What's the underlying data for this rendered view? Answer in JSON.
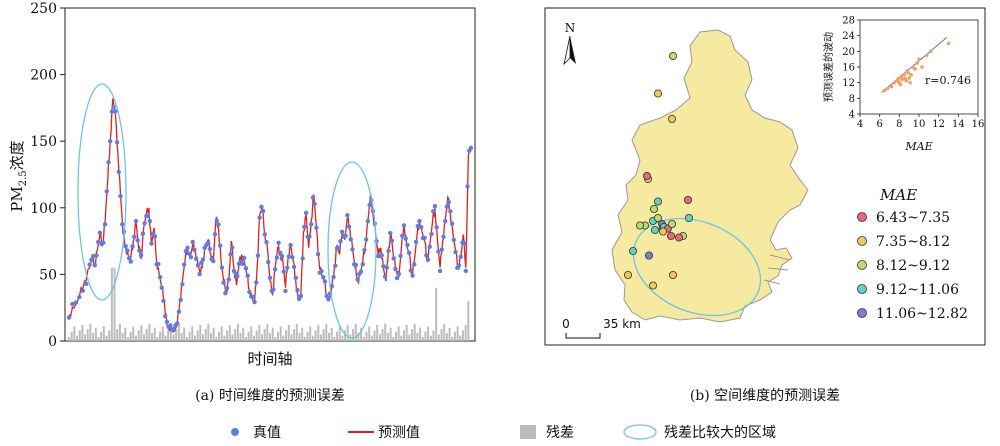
{
  "panel_a": {
    "caption": "(a) 时间维度的预测误差",
    "chart_data": {
      "type": "line",
      "title": "",
      "ylabel_main": "PM",
      "ylabel_sub": "2.5",
      "ylabel_rest": "浓度",
      "xlabel": "时间轴",
      "ylim": [
        0,
        250
      ],
      "yticks": [
        0,
        50,
        100,
        150,
        200,
        250
      ],
      "anchors": [
        [
          0,
          20
        ],
        [
          2,
          25
        ],
        [
          4,
          33
        ],
        [
          6,
          45
        ],
        [
          8,
          55
        ],
        [
          9,
          62
        ],
        [
          10,
          58
        ],
        [
          11,
          68
        ],
        [
          12,
          80
        ],
        [
          13,
          72
        ],
        [
          14,
          90
        ],
        [
          15,
          120
        ],
        [
          16,
          150
        ],
        [
          17,
          182
        ],
        [
          18,
          170
        ],
        [
          19,
          140
        ],
        [
          20,
          110
        ],
        [
          21,
          80
        ],
        [
          22,
          70
        ],
        [
          23,
          64
        ],
        [
          24,
          62
        ],
        [
          25,
          75
        ],
        [
          26,
          90
        ],
        [
          27,
          70
        ],
        [
          28,
          62
        ],
        [
          29,
          85
        ],
        [
          30,
          95
        ],
        [
          31,
          100
        ],
        [
          32,
          72
        ],
        [
          33,
          85
        ],
        [
          34,
          60
        ],
        [
          35,
          50
        ],
        [
          36,
          40
        ],
        [
          37,
          30
        ],
        [
          38,
          12
        ],
        [
          39,
          8
        ],
        [
          40,
          10
        ],
        [
          41,
          8
        ],
        [
          42,
          12
        ],
        [
          43,
          30
        ],
        [
          44,
          45
        ],
        [
          45,
          60
        ],
        [
          46,
          70
        ],
        [
          47,
          62
        ],
        [
          48,
          72
        ],
        [
          49,
          68
        ],
        [
          50,
          58
        ],
        [
          51,
          50
        ],
        [
          52,
          60
        ],
        [
          53,
          72
        ],
        [
          54,
          76
        ],
        [
          55,
          65
        ],
        [
          56,
          60
        ],
        [
          57,
          92
        ],
        [
          58,
          85
        ],
        [
          59,
          60
        ],
        [
          60,
          45
        ],
        [
          61,
          38
        ],
        [
          62,
          45
        ],
        [
          63,
          75
        ],
        [
          64,
          55
        ],
        [
          65,
          42
        ],
        [
          66,
          58
        ],
        [
          67,
          65
        ],
        [
          68,
          60
        ],
        [
          69,
          50
        ],
        [
          70,
          38
        ],
        [
          71,
          32
        ],
        [
          72,
          28
        ],
        [
          73,
          55
        ],
        [
          74,
          95
        ],
        [
          75,
          100
        ],
        [
          76,
          80
        ],
        [
          77,
          70
        ],
        [
          78,
          45
        ],
        [
          79,
          35
        ],
        [
          80,
          55
        ],
        [
          81,
          70
        ],
        [
          82,
          65
        ],
        [
          83,
          60
        ],
        [
          84,
          40
        ],
        [
          85,
          62
        ],
        [
          86,
          72
        ],
        [
          87,
          60
        ],
        [
          88,
          45
        ],
        [
          89,
          30
        ],
        [
          90,
          35
        ],
        [
          91,
          82
        ],
        [
          92,
          95
        ],
        [
          93,
          70
        ],
        [
          94,
          90
        ],
        [
          95,
          110
        ],
        [
          96,
          85
        ],
        [
          97,
          60
        ],
        [
          98,
          50
        ],
        [
          99,
          45
        ],
        [
          100,
          35
        ],
        [
          101,
          30
        ],
        [
          102,
          40
        ],
        [
          103,
          55
        ],
        [
          104,
          72
        ],
        [
          105,
          65
        ],
        [
          106,
          82
        ],
        [
          107,
          76
        ],
        [
          108,
          92
        ],
        [
          109,
          84
        ],
        [
          110,
          70
        ],
        [
          111,
          55
        ],
        [
          112,
          45
        ],
        [
          113,
          50
        ],
        [
          114,
          60
        ],
        [
          115,
          72
        ],
        [
          116,
          90
        ],
        [
          117,
          110
        ],
        [
          118,
          95
        ],
        [
          119,
          80
        ],
        [
          120,
          65
        ],
        [
          121,
          70
        ],
        [
          122,
          55
        ],
        [
          123,
          45
        ],
        [
          124,
          70
        ],
        [
          125,
          80
        ],
        [
          126,
          62
        ],
        [
          127,
          55
        ],
        [
          128,
          48
        ],
        [
          129,
          70
        ],
        [
          130,
          88
        ],
        [
          131,
          72
        ],
        [
          132,
          65
        ],
        [
          133,
          50
        ],
        [
          134,
          60
        ],
        [
          135,
          78
        ],
        [
          136,
          90
        ],
        [
          137,
          82
        ],
        [
          138,
          75
        ],
        [
          139,
          60
        ],
        [
          140,
          72
        ],
        [
          141,
          88
        ],
        [
          142,
          100
        ],
        [
          143,
          75
        ],
        [
          144,
          55
        ],
        [
          145,
          75
        ],
        [
          146,
          90
        ],
        [
          147,
          108
        ],
        [
          148,
          95
        ],
        [
          149,
          80
        ],
        [
          150,
          68
        ],
        [
          151,
          55
        ],
        [
          152,
          62
        ],
        [
          153,
          80
        ],
        [
          154,
          55
        ],
        [
          155,
          140
        ],
        [
          156,
          145
        ]
      ]
    },
    "annotations": [
      "ellipse-high-residual-1",
      "ellipse-high-residual-2"
    ]
  },
  "panel_b": {
    "caption": "(b) 空间维度的预测误差",
    "north": "N",
    "scale_zero": "0",
    "scale_label": "35 km",
    "legend_title": "MAE",
    "classes": [
      {
        "label": "6.43~7.35",
        "color": "#e8677e"
      },
      {
        "label": "7.35~8.12",
        "color": "#f2c85b"
      },
      {
        "label": "8.12~9.12",
        "color": "#b9dc6e"
      },
      {
        "label": "9.12~11.06",
        "color": "#5fd3c5"
      },
      {
        "label": "11.06~12.82",
        "color": "#7a7fd6"
      }
    ],
    "stations": [
      {
        "c": 2,
        "x": 45,
        "y": 0
      },
      {
        "c": 1,
        "x": 30,
        "y": 25
      },
      {
        "c": 1,
        "x": 44,
        "y": 42
      },
      {
        "c": 1,
        "x": 20,
        "y": 82
      },
      {
        "c": 0,
        "x": 19,
        "y": 80
      },
      {
        "c": 3,
        "x": 30,
        "y": 97
      },
      {
        "c": 2,
        "x": 26,
        "y": 102
      },
      {
        "c": 3,
        "x": 25,
        "y": 110
      },
      {
        "c": 2,
        "x": 30,
        "y": 108
      },
      {
        "c": 3,
        "x": 27,
        "y": 116
      },
      {
        "c": 2,
        "x": 17,
        "y": 113
      },
      {
        "c": 4,
        "x": 34,
        "y": 112
      },
      {
        "c": 0,
        "x": 35,
        "y": 115
      },
      {
        "c": 3,
        "x": 36,
        "y": 114
      },
      {
        "c": 0,
        "x": 40,
        "y": 115
      },
      {
        "c": 2,
        "x": 44,
        "y": 112
      },
      {
        "c": 0,
        "x": 43,
        "y": 120
      },
      {
        "c": 1,
        "x": 35,
        "y": 117
      },
      {
        "c": 2,
        "x": 12,
        "y": 113
      },
      {
        "c": 3,
        "x": 61,
        "y": 108
      },
      {
        "c": 0,
        "x": 60,
        "y": 96
      },
      {
        "c": 2,
        "x": 55,
        "y": 120
      },
      {
        "c": 0,
        "x": 51,
        "y": 121
      },
      {
        "c": 3,
        "x": 5,
        "y": 130
      },
      {
        "c": 4,
        "x": 21,
        "y": 133
      },
      {
        "c": 1,
        "x": 45,
        "y": 146
      },
      {
        "c": 1,
        "x": 25,
        "y": 153
      },
      {
        "c": 1,
        "x": 0,
        "y": 146
      }
    ],
    "inset": {
      "chart_data": {
        "type": "scatter",
        "xlabel": "MAE",
        "ylabel": "预测误差的波动",
        "xlim": [
          4,
          16
        ],
        "ylim": [
          4,
          28
        ],
        "xticks": [
          4,
          6,
          8,
          10,
          12,
          14,
          16
        ],
        "yticks": [
          4,
          8,
          12,
          16,
          20,
          24,
          28
        ],
        "r_label": "r=0.746",
        "points": [
          [
            6.5,
            10
          ],
          [
            6.8,
            10.5
          ],
          [
            7.2,
            11
          ],
          [
            7.5,
            12
          ],
          [
            7.8,
            12.5
          ],
          [
            7.9,
            13
          ],
          [
            8.0,
            12
          ],
          [
            8.1,
            11.5
          ],
          [
            8.2,
            13.5
          ],
          [
            8.3,
            12.8
          ],
          [
            8.5,
            14
          ],
          [
            8.6,
            13
          ],
          [
            8.7,
            12.5
          ],
          [
            8.8,
            15
          ],
          [
            8.9,
            14.5
          ],
          [
            9.0,
            13.2
          ],
          [
            9.1,
            12
          ],
          [
            9.2,
            14
          ],
          [
            9.4,
            16
          ],
          [
            9.6,
            15.5
          ],
          [
            9.8,
            17
          ],
          [
            10.0,
            18
          ],
          [
            10.3,
            16
          ],
          [
            10.8,
            19
          ],
          [
            11.2,
            20
          ],
          [
            13.0,
            22
          ]
        ],
        "fit": [
          [
            6.2,
            9.5
          ],
          [
            12.8,
            23.5
          ]
        ]
      }
    }
  },
  "legend": [
    {
      "label": "真值",
      "kind": "dot",
      "color": "#5b7fe0"
    },
    {
      "label": "预测值",
      "kind": "line",
      "color": "#e02020"
    },
    {
      "label": "残差",
      "kind": "bar",
      "color": "#b9b9b9"
    },
    {
      "label": "残差比较大的区域",
      "kind": "ellipse",
      "color": "#6ec3e6"
    }
  ]
}
